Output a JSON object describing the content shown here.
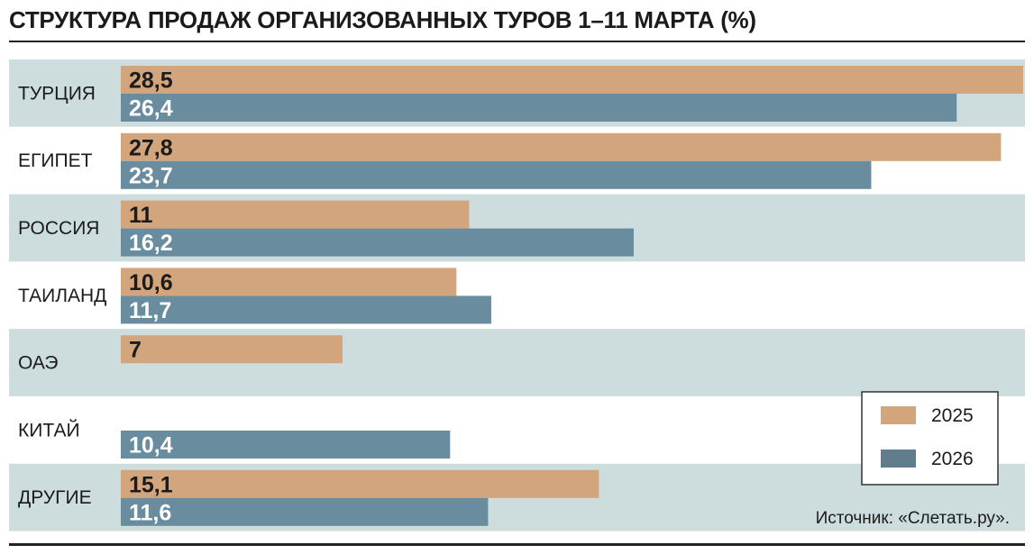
{
  "chart_data": {
    "type": "bar",
    "orientation": "horizontal",
    "title": "СТРУКТУРА ПРОДАЖ ОРГАНИЗОВАННЫХ ТУРОВ 1–11 МАРТА (%)",
    "categories": [
      "ТУРЦИЯ",
      "ЕГИПЕТ",
      "РОССИЯ",
      "ТАИЛАНД",
      "ОАЭ",
      "КИТАЙ",
      "ДРУГИЕ"
    ],
    "series": [
      {
        "name": "2025",
        "color": "#d2a57c",
        "label_color": "#1b1b1b",
        "values": [
          28.5,
          27.8,
          11,
          10.6,
          7,
          null,
          15.1
        ],
        "labels": [
          "28,5",
          "27,8",
          "11",
          "10,6",
          "7",
          "",
          "15,1"
        ]
      },
      {
        "name": "2026",
        "color": "#698d9f",
        "label_color": "#ffffff",
        "values": [
          26.4,
          23.7,
          16.2,
          11.7,
          null,
          10.4,
          11.6
        ],
        "labels": [
          "26,4",
          "23,7",
          "16,2",
          "11,7",
          "",
          "10,4",
          "11,6"
        ]
      }
    ],
    "xlim": [
      0,
      28.5
    ],
    "grid": false,
    "legend_position": "bottom-right",
    "row_band_color": "#cddcdc",
    "legend_swatch_colors": [
      "#d2a57c",
      "#5f7d8c"
    ]
  },
  "source": "Источник: «Слетать.ру»."
}
